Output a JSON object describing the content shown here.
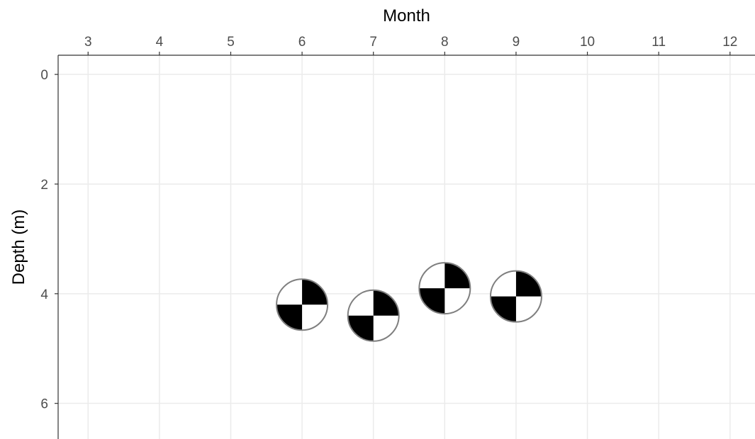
{
  "chart_data": {
    "type": "scatter",
    "title": "",
    "xlabel": "Month",
    "ylabel": "Depth (m)",
    "x_axis_position": "top",
    "y_reversed": true,
    "xlim": [
      2.58,
      12.35
    ],
    "ylim": [
      -0.35,
      6.65
    ],
    "x_ticks": [
      3,
      4,
      5,
      6,
      7,
      8,
      9,
      10,
      11,
      12
    ],
    "y_ticks": [
      0,
      2,
      4,
      6
    ],
    "grid": true,
    "legend": "none",
    "marker": "secchi-disk-icon",
    "colors": {
      "grid": "#ebebeb",
      "axis": "#333333",
      "tick_text": "#4d4d4d",
      "marker_dark": "#000000",
      "marker_light": "#ffffff",
      "marker_edge": "#7f7f7f"
    },
    "points": [
      {
        "x": 6,
        "y": 4.2
      },
      {
        "x": 7,
        "y": 4.4
      },
      {
        "x": 8,
        "y": 3.9
      },
      {
        "x": 9,
        "y": 4.05
      }
    ]
  }
}
